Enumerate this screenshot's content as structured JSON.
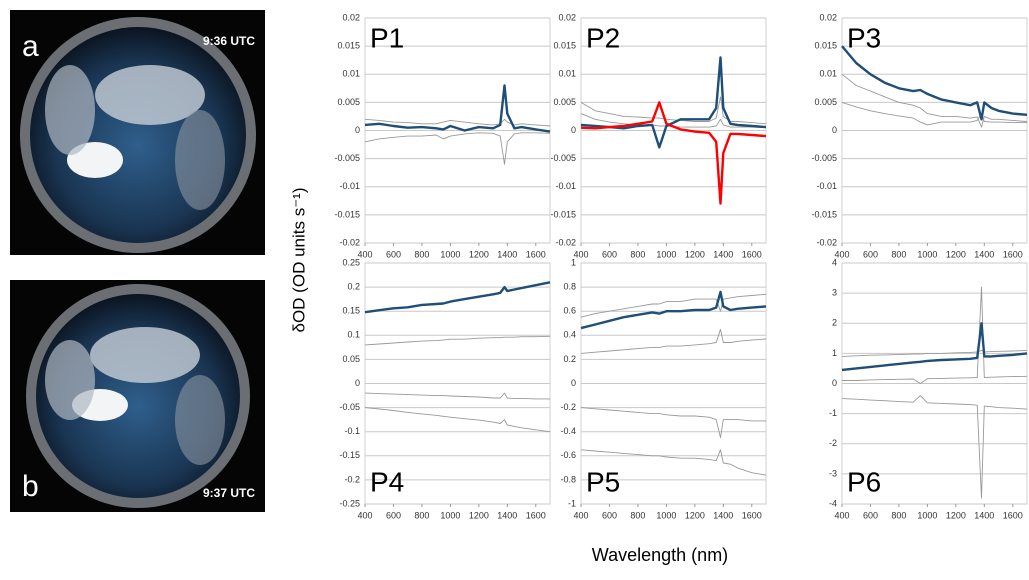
{
  "images": [
    {
      "label": "a",
      "time": "9:36 UTC"
    },
    {
      "label": "b",
      "time": "9:37 UTC"
    }
  ],
  "y_label": "δOD (OD units s⁻¹)",
  "x_label": "Wavelength (nm)",
  "chart_data": [
    {
      "type": "line",
      "title": "P1",
      "x": [
        400,
        500,
        600,
        700,
        800,
        900,
        950,
        1000,
        1100,
        1200,
        1300,
        1350,
        1380,
        1400,
        1450,
        1500,
        1600,
        1700
      ],
      "xlim": [
        400,
        1700
      ],
      "xticks": [
        400,
        600,
        800,
        1000,
        1200,
        1400,
        1600
      ],
      "ylim": [
        -0.02,
        0.02
      ],
      "yticks": [
        0.02,
        0.015,
        0.01,
        0.005,
        0,
        -0.005,
        -0.01,
        -0.015,
        -0.02
      ],
      "grid": true,
      "series": [
        {
          "color": "#999999",
          "values": [
            0.002,
            0.0018,
            0.0015,
            0.0014,
            0.0012,
            0.0012,
            0.0015,
            0.0018,
            0.0015,
            0.0012,
            0.001,
            0.0012,
            0.002,
            0.0015,
            0.001,
            0.0012,
            0.001,
            0.0008
          ]
        },
        {
          "color": "#999999",
          "values": [
            -0.002,
            -0.0015,
            -0.0012,
            -0.001,
            -0.001,
            -0.0008,
            -0.0015,
            -0.001,
            -0.0006,
            -0.0004,
            -0.0005,
            -0.001,
            -0.006,
            -0.002,
            -0.0006,
            -0.0004,
            -0.0004,
            -0.0005
          ]
        },
        {
          "color": "#1f4e79",
          "values": [
            0.001,
            0.0012,
            0.0008,
            0.0005,
            0.0006,
            0.0004,
            0.0002,
            0.0008,
            0,
            0.0006,
            0.0004,
            0.001,
            0.008,
            0.003,
            0.0004,
            0.0006,
            0.0002,
            -0.0002
          ]
        }
      ]
    },
    {
      "type": "line",
      "title": "P2",
      "x": [
        400,
        500,
        600,
        700,
        800,
        900,
        950,
        1000,
        1100,
        1200,
        1300,
        1350,
        1380,
        1400,
        1450,
        1500,
        1600,
        1700
      ],
      "xlim": [
        400,
        1700
      ],
      "xticks": [
        400,
        600,
        800,
        1000,
        1200,
        1400,
        1600
      ],
      "ylim": [
        -0.02,
        0.02
      ],
      "yticks": [
        0.02,
        0.015,
        0.01,
        0.005,
        0,
        -0.005,
        -0.01,
        -0.015,
        -0.02
      ],
      "grid": true,
      "series": [
        {
          "color": "#999999",
          "values": [
            0.005,
            0.0035,
            0.003,
            0.0025,
            0.0024,
            0.0022,
            0.0022,
            0.002,
            0.0018,
            0.0016,
            0.0016,
            0.0022,
            0.006,
            0.0025,
            0.0016,
            0.0016,
            0.0014,
            0.0012
          ]
        },
        {
          "color": "#999999",
          "values": [
            0.003,
            0.002,
            0.0015,
            0.0012,
            0.001,
            0.001,
            0.0008,
            0.0008,
            0.0006,
            0.0006,
            0.0006,
            0.0008,
            0.002,
            0.001,
            0.0006,
            0.0006,
            0.0006,
            0.0005
          ]
        },
        {
          "color": "#1f4e79",
          "values": [
            0.001,
            0.0008,
            0.0006,
            0.0004,
            0.0008,
            0.001,
            -0.003,
            0.0008,
            0.002,
            0.002,
            0.002,
            0.004,
            0.013,
            0.004,
            0.0012,
            0.001,
            0.0008,
            0.0006
          ]
        },
        {
          "color": "#ff0000",
          "values": [
            0.0005,
            0.0004,
            0.0006,
            0.0008,
            0.0012,
            0.0016,
            0.005,
            0.0012,
            0.0002,
            -0.0002,
            -0.0004,
            -0.002,
            -0.013,
            -0.004,
            -0.0006,
            -0.0006,
            -0.0008,
            -0.001
          ]
        }
      ]
    },
    {
      "type": "line",
      "title": "P3",
      "x": [
        400,
        500,
        600,
        700,
        800,
        900,
        950,
        1000,
        1100,
        1200,
        1300,
        1350,
        1380,
        1400,
        1450,
        1500,
        1600,
        1700
      ],
      "xlim": [
        400,
        1700
      ],
      "xticks": [
        400,
        600,
        800,
        1000,
        1200,
        1400,
        1600
      ],
      "ylim": [
        -0.02,
        0.02
      ],
      "yticks": [
        0.02,
        0.015,
        0.01,
        0.005,
        0,
        -0.005,
        -0.01,
        -0.015,
        -0.02
      ],
      "grid": true,
      "series": [
        {
          "color": "#999999",
          "values": [
            0.01,
            0.008,
            0.007,
            0.006,
            0.005,
            0.0045,
            0.004,
            0.003,
            0.0025,
            0.0025,
            0.0022,
            0.0024,
            0.0006,
            0.0025,
            0.002,
            0.002,
            0.0018,
            0.0016
          ]
        },
        {
          "color": "#999999",
          "values": [
            0.005,
            0.0042,
            0.0035,
            0.003,
            0.0026,
            0.0022,
            0.0015,
            0.001,
            0.0015,
            0.0015,
            0.0015,
            0.0018,
            0.003,
            0.0016,
            0.0015,
            0.0015,
            0.0014,
            0.0014
          ]
        },
        {
          "color": "#1f4e79",
          "values": [
            0.015,
            0.012,
            0.01,
            0.0085,
            0.0075,
            0.007,
            0.0072,
            0.0065,
            0.0055,
            0.005,
            0.0045,
            0.005,
            0.002,
            0.005,
            0.004,
            0.0035,
            0.003,
            0.0028
          ]
        }
      ]
    },
    {
      "type": "line",
      "title": "P4",
      "x": [
        400,
        500,
        600,
        700,
        800,
        900,
        950,
        1000,
        1100,
        1200,
        1300,
        1350,
        1380,
        1400,
        1450,
        1500,
        1600,
        1700
      ],
      "xlim": [
        400,
        1700
      ],
      "xticks": [
        400,
        600,
        800,
        1000,
        1200,
        1400,
        1600
      ],
      "ylim": [
        -0.25,
        0.25
      ],
      "yticks": [
        0.25,
        0.2,
        0.15,
        0.1,
        0.05,
        0,
        -0.05,
        -0.1,
        -0.15,
        -0.2,
        -0.25
      ],
      "grid": true,
      "series": [
        {
          "color": "#999999",
          "values": [
            0.08,
            0.082,
            0.084,
            0.086,
            0.088,
            0.089,
            0.09,
            0.092,
            0.092,
            0.094,
            0.095,
            0.095,
            0.096,
            0.096,
            0.096,
            0.097,
            0.097,
            0.098
          ]
        },
        {
          "color": "#999999",
          "values": [
            -0.02,
            -0.021,
            -0.022,
            -0.023,
            -0.024,
            -0.025,
            -0.025,
            -0.026,
            -0.027,
            -0.028,
            -0.03,
            -0.03,
            -0.02,
            -0.03,
            -0.031,
            -0.031,
            -0.032,
            -0.032
          ]
        },
        {
          "color": "#999999",
          "values": [
            -0.05,
            -0.053,
            -0.056,
            -0.06,
            -0.063,
            -0.066,
            -0.068,
            -0.07,
            -0.073,
            -0.076,
            -0.08,
            -0.083,
            -0.075,
            -0.086,
            -0.089,
            -0.092,
            -0.096,
            -0.1
          ]
        },
        {
          "color": "#1f4e79",
          "values": [
            0.148,
            0.152,
            0.156,
            0.158,
            0.163,
            0.165,
            0.166,
            0.17,
            0.175,
            0.18,
            0.185,
            0.188,
            0.2,
            0.192,
            0.195,
            0.198,
            0.204,
            0.21
          ]
        }
      ]
    },
    {
      "type": "line",
      "title": "P5",
      "x": [
        400,
        500,
        600,
        700,
        800,
        900,
        950,
        1000,
        1100,
        1200,
        1300,
        1350,
        1380,
        1400,
        1450,
        1500,
        1600,
        1700
      ],
      "xlim": [
        400,
        1700
      ],
      "xticks": [
        400,
        600,
        800,
        1000,
        1200,
        1400,
        1600
      ],
      "ylim": [
        -1,
        1
      ],
      "yticks": [
        1,
        0.8,
        0.6,
        0.4,
        0.2,
        0,
        -0.2,
        -0.4,
        -0.6,
        -0.8,
        -1
      ],
      "grid": true,
      "series": [
        {
          "color": "#999999",
          "values": [
            0.55,
            0.58,
            0.6,
            0.62,
            0.64,
            0.66,
            0.66,
            0.68,
            0.68,
            0.7,
            0.7,
            0.7,
            0.6,
            0.7,
            0.71,
            0.72,
            0.73,
            0.74
          ]
        },
        {
          "color": "#999999",
          "values": [
            0.25,
            0.26,
            0.27,
            0.28,
            0.29,
            0.3,
            0.3,
            0.31,
            0.31,
            0.32,
            0.33,
            0.34,
            0.45,
            0.34,
            0.34,
            0.35,
            0.36,
            0.37
          ]
        },
        {
          "color": "#999999",
          "values": [
            -0.2,
            -0.21,
            -0.22,
            -0.23,
            -0.24,
            -0.25,
            -0.25,
            -0.26,
            -0.27,
            -0.27,
            -0.28,
            -0.3,
            -0.45,
            -0.3,
            -0.3,
            -0.3,
            -0.31,
            -0.31
          ]
        },
        {
          "color": "#999999",
          "values": [
            -0.55,
            -0.56,
            -0.57,
            -0.58,
            -0.59,
            -0.6,
            -0.6,
            -0.61,
            -0.62,
            -0.62,
            -0.63,
            -0.64,
            -0.55,
            -0.66,
            -0.67,
            -0.7,
            -0.74,
            -0.76
          ]
        },
        {
          "color": "#1f4e79",
          "values": [
            0.46,
            0.49,
            0.52,
            0.55,
            0.57,
            0.59,
            0.58,
            0.6,
            0.6,
            0.61,
            0.61,
            0.63,
            0.76,
            0.64,
            0.61,
            0.62,
            0.63,
            0.64
          ]
        }
      ]
    },
    {
      "type": "line",
      "title": "P6",
      "x": [
        400,
        500,
        600,
        700,
        800,
        900,
        950,
        1000,
        1100,
        1200,
        1300,
        1350,
        1380,
        1400,
        1450,
        1500,
        1600,
        1700
      ],
      "xlim": [
        400,
        1700
      ],
      "xticks": [
        400,
        600,
        800,
        1000,
        1200,
        1400,
        1600
      ],
      "ylim": [
        -4,
        4
      ],
      "yticks": [
        4,
        3,
        2,
        1,
        0,
        -1,
        -2,
        -3,
        -4
      ],
      "grid": true,
      "series": [
        {
          "color": "#999999",
          "values": [
            0.9,
            0.92,
            0.94,
            0.95,
            0.96,
            0.98,
            0.98,
            1.0,
            1.0,
            1.02,
            1.03,
            1.05,
            1.1,
            1.05,
            1.06,
            1.07,
            1.08,
            1.1
          ]
        },
        {
          "color": "#999999",
          "values": [
            0.1,
            0.1,
            0.12,
            0.13,
            0.14,
            0.15,
            0.0,
            0.16,
            0.17,
            0.18,
            0.19,
            0.2,
            3.2,
            0.2,
            0.21,
            0.22,
            0.23,
            0.24
          ]
        },
        {
          "color": "#999999",
          "values": [
            -0.5,
            -0.52,
            -0.55,
            -0.57,
            -0.6,
            -0.62,
            -0.4,
            -0.64,
            -0.66,
            -0.68,
            -0.7,
            -0.72,
            -3.8,
            -0.75,
            -0.77,
            -0.8,
            -0.82,
            -0.85
          ]
        },
        {
          "color": "#1f4e79",
          "values": [
            0.45,
            0.5,
            0.55,
            0.6,
            0.65,
            0.7,
            0.72,
            0.75,
            0.78,
            0.8,
            0.82,
            0.85,
            2.0,
            0.9,
            0.9,
            0.92,
            0.95,
            1.0
          ]
        }
      ]
    }
  ]
}
